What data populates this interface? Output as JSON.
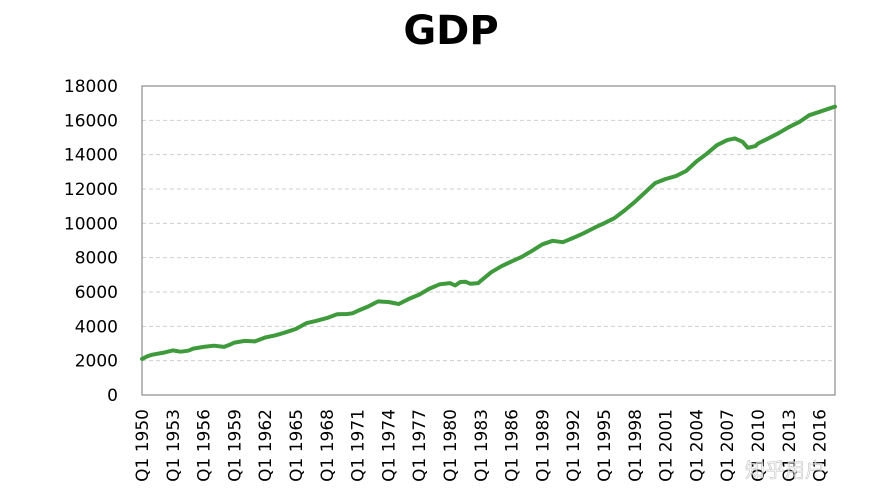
{
  "chart_data": {
    "type": "line",
    "title": "GDP",
    "xlabel": "",
    "ylabel": "",
    "ylim": [
      0,
      18000
    ],
    "yticks": [
      0,
      2000,
      4000,
      6000,
      8000,
      10000,
      12000,
      14000,
      16000,
      18000
    ],
    "xlim": [
      1950,
      2017.5
    ],
    "xticks": [
      {
        "x": 1950,
        "label": "Q1 1950"
      },
      {
        "x": 1953,
        "label": "Q1 1953"
      },
      {
        "x": 1956,
        "label": "Q1 1956"
      },
      {
        "x": 1959,
        "label": "Q1 1959"
      },
      {
        "x": 1962,
        "label": "Q1 1962"
      },
      {
        "x": 1965,
        "label": "Q1 1965"
      },
      {
        "x": 1968,
        "label": "Q1 1968"
      },
      {
        "x": 1971,
        "label": "Q1 1971"
      },
      {
        "x": 1974,
        "label": "Q1 1974"
      },
      {
        "x": 1977,
        "label": "Q1 1977"
      },
      {
        "x": 1980,
        "label": "Q1 1980"
      },
      {
        "x": 1983,
        "label": "Q1 1983"
      },
      {
        "x": 1986,
        "label": "Q1 1986"
      },
      {
        "x": 1989,
        "label": "Q1 1989"
      },
      {
        "x": 1992,
        "label": "Q1 1992"
      },
      {
        "x": 1995,
        "label": "Q1 1995"
      },
      {
        "x": 1998,
        "label": "Q1 1998"
      },
      {
        "x": 2001,
        "label": "Q1 2001"
      },
      {
        "x": 2004,
        "label": "Q1 2004"
      },
      {
        "x": 2007,
        "label": "Q1 2007"
      },
      {
        "x": 2010,
        "label": "Q1 2010"
      },
      {
        "x": 2013,
        "label": "Q1 2013"
      },
      {
        "x": 2016,
        "label": "Q1 2016"
      }
    ],
    "grid": true,
    "legend": "none",
    "series": [
      {
        "color": "#3f9a3c",
        "points": [
          [
            1950.0,
            2100
          ],
          [
            1950.5,
            2250
          ],
          [
            1951.0,
            2350
          ],
          [
            1952.0,
            2450
          ],
          [
            1953.0,
            2600
          ],
          [
            1953.75,
            2520
          ],
          [
            1954.5,
            2580
          ],
          [
            1955.0,
            2700
          ],
          [
            1956.0,
            2800
          ],
          [
            1957.0,
            2870
          ],
          [
            1958.0,
            2800
          ],
          [
            1958.5,
            2920
          ],
          [
            1959.0,
            3050
          ],
          [
            1960.0,
            3150
          ],
          [
            1961.0,
            3120
          ],
          [
            1962.0,
            3350
          ],
          [
            1963.0,
            3480
          ],
          [
            1964.0,
            3650
          ],
          [
            1965.0,
            3850
          ],
          [
            1966.0,
            4180
          ],
          [
            1967.0,
            4320
          ],
          [
            1968.0,
            4480
          ],
          [
            1969.0,
            4700
          ],
          [
            1970.0,
            4720
          ],
          [
            1970.5,
            4760
          ],
          [
            1971.0,
            4900
          ],
          [
            1972.0,
            5150
          ],
          [
            1973.0,
            5450
          ],
          [
            1974.0,
            5420
          ],
          [
            1975.0,
            5300
          ],
          [
            1976.0,
            5600
          ],
          [
            1977.0,
            5850
          ],
          [
            1978.0,
            6200
          ],
          [
            1979.0,
            6450
          ],
          [
            1980.0,
            6520
          ],
          [
            1980.5,
            6380
          ],
          [
            1981.0,
            6580
          ],
          [
            1981.5,
            6600
          ],
          [
            1982.0,
            6480
          ],
          [
            1982.75,
            6520
          ],
          [
            1983.0,
            6650
          ],
          [
            1984.0,
            7150
          ],
          [
            1985.0,
            7500
          ],
          [
            1986.0,
            7780
          ],
          [
            1987.0,
            8050
          ],
          [
            1988.0,
            8400
          ],
          [
            1989.0,
            8780
          ],
          [
            1990.0,
            8980
          ],
          [
            1991.0,
            8900
          ],
          [
            1992.0,
            9150
          ],
          [
            1993.0,
            9420
          ],
          [
            1994.0,
            9720
          ],
          [
            1995.0,
            10000
          ],
          [
            1996.0,
            10300
          ],
          [
            1997.0,
            10750
          ],
          [
            1998.0,
            11250
          ],
          [
            1999.0,
            11800
          ],
          [
            2000.0,
            12350
          ],
          [
            2001.0,
            12580
          ],
          [
            2002.0,
            12750
          ],
          [
            2003.0,
            13050
          ],
          [
            2004.0,
            13600
          ],
          [
            2005.0,
            14050
          ],
          [
            2006.0,
            14550
          ],
          [
            2007.0,
            14850
          ],
          [
            2007.75,
            14950
          ],
          [
            2008.5,
            14750
          ],
          [
            2009.0,
            14400
          ],
          [
            2009.75,
            14500
          ],
          [
            2010.0,
            14650
          ],
          [
            2011.0,
            14950
          ],
          [
            2012.0,
            15250
          ],
          [
            2013.0,
            15600
          ],
          [
            2014.0,
            15900
          ],
          [
            2015.0,
            16300
          ],
          [
            2016.0,
            16500
          ],
          [
            2017.0,
            16700
          ],
          [
            2017.5,
            16800
          ]
        ]
      }
    ]
  },
  "watermark": "知乎用户"
}
